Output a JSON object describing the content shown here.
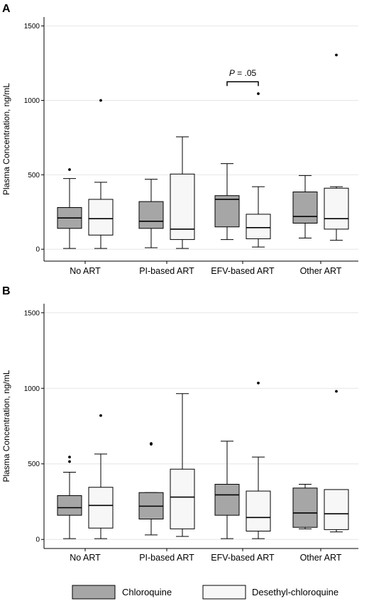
{
  "figure": {
    "legend": [
      {
        "label": "Chloroquine",
        "color": "#a6a6a6"
      },
      {
        "label": "Desethyl-chloroquine",
        "color": "#f7f7f7"
      }
    ]
  },
  "chart_data": [
    {
      "type": "box",
      "panel": "A",
      "ylabel": "Plasma Concentration, ng/mL",
      "ylim": [
        -80,
        1560
      ],
      "yticks": [
        0,
        500,
        1000,
        1500
      ],
      "grid": "horizontal",
      "categories": [
        "No ART",
        "PI-based ART",
        "EFV-based ART",
        "Other ART"
      ],
      "series": [
        {
          "name": "Chloroquine",
          "color": "#a6a6a6",
          "boxes": [
            {
              "min": 5,
              "q1": 140,
              "median": 210,
              "q3": 280,
              "max": 475,
              "outliers": [
                535
              ]
            },
            {
              "min": 10,
              "q1": 140,
              "median": 188,
              "q3": 320,
              "max": 470,
              "outliers": []
            },
            {
              "min": 65,
              "q1": 150,
              "median": 335,
              "q3": 360,
              "max": 575,
              "outliers": []
            },
            {
              "min": 75,
              "q1": 175,
              "median": 220,
              "q3": 385,
              "max": 495,
              "outliers": []
            }
          ]
        },
        {
          "name": "Desethyl-chloroquine",
          "color": "#f7f7f7",
          "boxes": [
            {
              "min": 5,
              "q1": 95,
              "median": 205,
              "q3": 335,
              "max": 450,
              "outliers": [
                1000
              ]
            },
            {
              "min": 5,
              "q1": 65,
              "median": 135,
              "q3": 505,
              "max": 755,
              "outliers": []
            },
            {
              "min": 15,
              "q1": 70,
              "median": 145,
              "q3": 235,
              "max": 420,
              "outliers": [
                1045
              ]
            },
            {
              "min": 60,
              "q1": 135,
              "median": 205,
              "q3": 410,
              "max": 420,
              "outliers": [
                1305
              ]
            }
          ]
        }
      ],
      "annotations": [
        {
          "text_italic": "P",
          "text_rest": " = .05",
          "category": "EFV-based ART",
          "y": 1125
        }
      ]
    },
    {
      "type": "box",
      "panel": "B",
      "ylabel": "Plasma Concentration, ng/mL",
      "ylim": [
        -60,
        1560
      ],
      "yticks": [
        0,
        500,
        1000,
        1500
      ],
      "grid": "horizontal",
      "categories": [
        "No ART",
        "PI-based ART",
        "EFV-based ART",
        "Other ART"
      ],
      "series": [
        {
          "name": "Chloroquine",
          "color": "#a6a6a6",
          "boxes": [
            {
              "min": 5,
              "q1": 160,
              "median": 210,
              "q3": 290,
              "max": 445,
              "outliers": [
                515,
                545
              ]
            },
            {
              "min": 30,
              "q1": 135,
              "median": 220,
              "q3": 310,
              "max": 310,
              "outliers": [
                630,
                635
              ]
            },
            {
              "min": 5,
              "q1": 160,
              "median": 295,
              "q3": 365,
              "max": 650,
              "outliers": []
            },
            {
              "min": 70,
              "q1": 80,
              "median": 175,
              "q3": 340,
              "max": 365,
              "outliers": []
            }
          ]
        },
        {
          "name": "Desethyl-chloroquine",
          "color": "#f7f7f7",
          "boxes": [
            {
              "min": 5,
              "q1": 75,
              "median": 225,
              "q3": 345,
              "max": 565,
              "outliers": [
                820
              ]
            },
            {
              "min": 20,
              "q1": 70,
              "median": 280,
              "q3": 465,
              "max": 965,
              "outliers": []
            },
            {
              "min": 5,
              "q1": 55,
              "median": 145,
              "q3": 320,
              "max": 545,
              "outliers": [
                1035
              ]
            },
            {
              "min": 50,
              "q1": 65,
              "median": 170,
              "q3": 330,
              "max": 330,
              "outliers": [
                980
              ]
            }
          ]
        }
      ],
      "annotations": []
    }
  ]
}
